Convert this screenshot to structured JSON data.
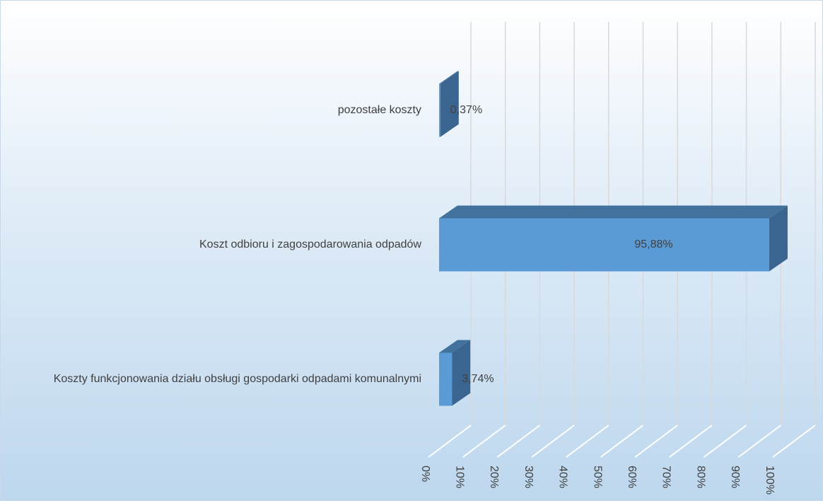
{
  "chart_data": {
    "type": "bar3d_horizontal",
    "categories": [
      "Koszty funkcjonowania działu obsługi gospodarki odpadami komunalnymi",
      "Koszt odbioru i zagospodarowania odpadów",
      "pozostałe koszty"
    ],
    "values": [
      3.74,
      95.88,
      0.37
    ],
    "value_labels": [
      "3,74%",
      "95,88%",
      "0,37%"
    ],
    "color": "#5b9bd5",
    "xlim": [
      0,
      100
    ],
    "xticks": [
      {
        "value": 0,
        "label": "0%"
      },
      {
        "value": 10,
        "label": "10%"
      },
      {
        "value": 20,
        "label": "20%"
      },
      {
        "value": 30,
        "label": "30%"
      },
      {
        "value": 40,
        "label": "40%"
      },
      {
        "value": 50,
        "label": "50%"
      },
      {
        "value": 60,
        "label": "60%"
      },
      {
        "value": 70,
        "label": "70%"
      },
      {
        "value": 80,
        "label": "80%"
      },
      {
        "value": 90,
        "label": "90%"
      },
      {
        "value": 100,
        "label": "100%"
      }
    ],
    "grid": true
  }
}
